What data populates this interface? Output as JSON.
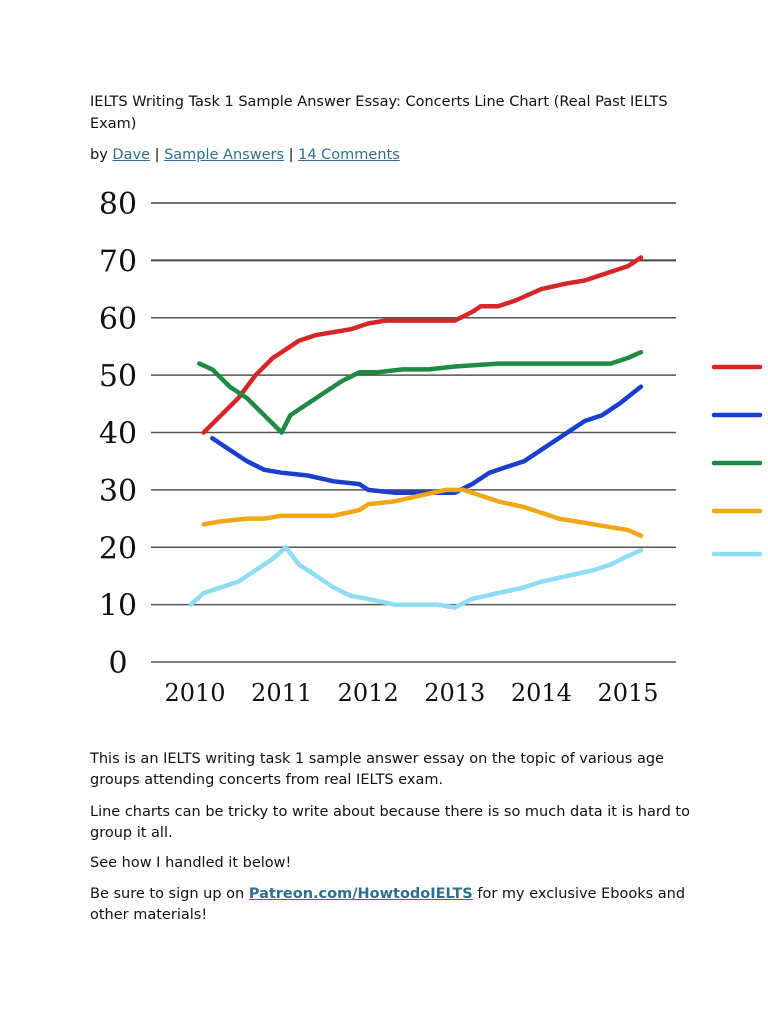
{
  "article": {
    "title": "IELTS Writing Task 1 Sample Answer Essay: Concerts Line Chart (Real Past IELTS Exam)",
    "byline": {
      "by": "by",
      "author": "Dave",
      "sep1": "|",
      "category": "Sample Answers",
      "sep2": "|",
      "comments": "14 Comments"
    },
    "paragraphs": {
      "p1": "This is an IELTS writing task 1 sample answer essay on the topic of various age groups attending concerts from real IELTS exam.",
      "p2": "Line charts can be tricky to write about because there is so much data it is hard to group it all.",
      "p3": "See how I handled it below!",
      "p4_prefix": "Be sure to sign up on ",
      "p4_link": "Patreon.com/HowtodoIELTS",
      "p4_suffix": " for my exclusive Ebooks and other materials!"
    }
  },
  "chart_data": {
    "type": "line",
    "title": "",
    "xlabel": "",
    "ylabel": "",
    "xlim": [
      2010,
      2015
    ],
    "ylim": [
      0,
      80
    ],
    "x_ticks": [
      "2010",
      "2011",
      "2012",
      "2013",
      "2014",
      "2015"
    ],
    "y_ticks": [
      "0",
      "10",
      "20",
      "30",
      "40",
      "50",
      "60",
      "70",
      "80"
    ],
    "grid": true,
    "legend_position": "right (cut off)",
    "series": [
      {
        "color": "#d62728",
        "points": [
          [
            2010.1,
            40
          ],
          [
            2010.3,
            43
          ],
          [
            2010.5,
            46
          ],
          [
            2010.7,
            50
          ],
          [
            2010.9,
            53
          ],
          [
            2011,
            54
          ],
          [
            2011.2,
            56
          ],
          [
            2011.4,
            57
          ],
          [
            2011.6,
            57.5
          ],
          [
            2011.8,
            58
          ],
          [
            2012,
            59
          ],
          [
            2012.2,
            59.5
          ],
          [
            2012.5,
            59.5
          ],
          [
            2013,
            59.5
          ],
          [
            2013.2,
            61
          ],
          [
            2013.3,
            62
          ],
          [
            2013.5,
            62
          ],
          [
            2013.7,
            63
          ],
          [
            2014,
            65
          ],
          [
            2014.3,
            66
          ],
          [
            2014.5,
            66.5
          ],
          [
            2014.7,
            67.5
          ],
          [
            2015,
            69
          ],
          [
            2015.15,
            70.5
          ]
        ]
      },
      {
        "color": "#1a3fcc",
        "points": [
          [
            2010.2,
            39
          ],
          [
            2010.4,
            37
          ],
          [
            2010.6,
            35
          ],
          [
            2010.8,
            33.5
          ],
          [
            2011,
            33
          ],
          [
            2011.3,
            32.5
          ],
          [
            2011.6,
            31.5
          ],
          [
            2011.9,
            31
          ],
          [
            2012,
            30
          ],
          [
            2012.3,
            29.5
          ],
          [
            2012.7,
            29.5
          ],
          [
            2013,
            29.5
          ],
          [
            2013.2,
            31
          ],
          [
            2013.4,
            33
          ],
          [
            2013.6,
            34
          ],
          [
            2013.8,
            35
          ],
          [
            2014,
            37
          ],
          [
            2014.3,
            40
          ],
          [
            2014.5,
            42
          ],
          [
            2014.7,
            43
          ],
          [
            2014.9,
            45
          ],
          [
            2015.15,
            48
          ]
        ]
      },
      {
        "color": "#1e8a44",
        "points": [
          [
            2010.05,
            52
          ],
          [
            2010.2,
            51
          ],
          [
            2010.4,
            48
          ],
          [
            2010.6,
            46
          ],
          [
            2010.8,
            43
          ],
          [
            2011,
            40
          ],
          [
            2011.1,
            43
          ],
          [
            2011.3,
            45
          ],
          [
            2011.5,
            47
          ],
          [
            2011.7,
            49
          ],
          [
            2011.9,
            50.5
          ],
          [
            2012.1,
            50.5
          ],
          [
            2012.4,
            51
          ],
          [
            2012.7,
            51
          ],
          [
            2013,
            51.5
          ],
          [
            2013.5,
            52
          ],
          [
            2014,
            52
          ],
          [
            2014.5,
            52
          ],
          [
            2014.8,
            52
          ],
          [
            2015,
            53
          ],
          [
            2015.15,
            54
          ]
        ]
      },
      {
        "color": "#f0a818",
        "points": [
          [
            2010.1,
            24
          ],
          [
            2010.3,
            24.5
          ],
          [
            2010.6,
            25
          ],
          [
            2010.8,
            25
          ],
          [
            2011,
            25.5
          ],
          [
            2011.3,
            25.5
          ],
          [
            2011.6,
            25.5
          ],
          [
            2011.9,
            26.5
          ],
          [
            2012,
            27.5
          ],
          [
            2012.3,
            28
          ],
          [
            2012.6,
            29
          ],
          [
            2012.9,
            30
          ],
          [
            2013.1,
            30
          ],
          [
            2013.3,
            29
          ],
          [
            2013.5,
            28
          ],
          [
            2013.8,
            27
          ],
          [
            2014,
            26
          ],
          [
            2014.2,
            25
          ],
          [
            2014.4,
            24.5
          ],
          [
            2014.6,
            24
          ],
          [
            2014.8,
            23.5
          ],
          [
            2015,
            23
          ],
          [
            2015.15,
            22
          ]
        ]
      },
      {
        "color": "#8fdcf5",
        "points": [
          [
            2009.95,
            10
          ],
          [
            2010.1,
            12
          ],
          [
            2010.3,
            13
          ],
          [
            2010.5,
            14
          ],
          [
            2010.7,
            16
          ],
          [
            2010.9,
            18
          ],
          [
            2011.05,
            20
          ],
          [
            2011.2,
            17
          ],
          [
            2011.4,
            15
          ],
          [
            2011.6,
            13
          ],
          [
            2011.8,
            11.5
          ],
          [
            2012,
            11
          ],
          [
            2012.3,
            10
          ],
          [
            2012.6,
            10
          ],
          [
            2012.8,
            10
          ],
          [
            2013,
            9.5
          ],
          [
            2013.2,
            11
          ],
          [
            2013.5,
            12
          ],
          [
            2013.8,
            13
          ],
          [
            2014,
            14
          ],
          [
            2014.3,
            15
          ],
          [
            2014.6,
            16
          ],
          [
            2014.8,
            17
          ],
          [
            2015,
            18.5
          ],
          [
            2015.15,
            19.5
          ]
        ]
      }
    ]
  }
}
